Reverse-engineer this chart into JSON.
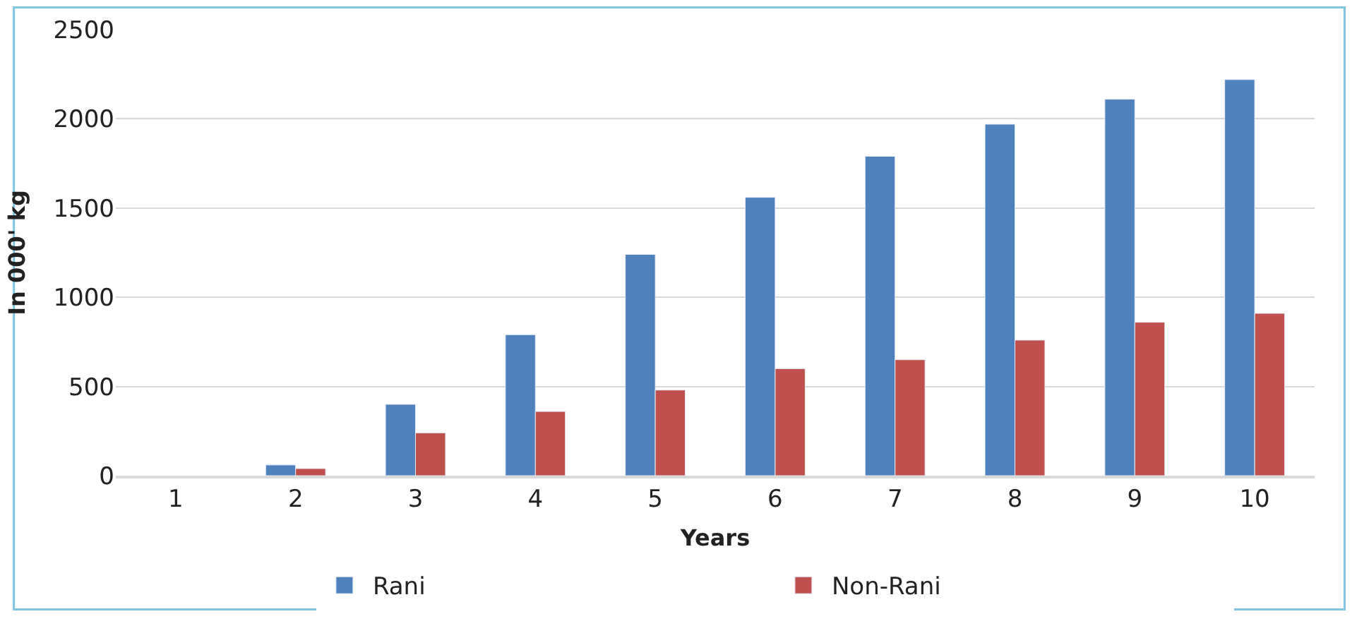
{
  "chart_data": {
    "type": "bar",
    "xlabel": "Years",
    "ylabel": "In 000' kg",
    "categories": [
      "1",
      "2",
      "3",
      "4",
      "5",
      "6",
      "7",
      "8",
      "9",
      "10"
    ],
    "series": [
      {
        "name": "Rani",
        "color": "#4f81bd",
        "values": [
          null,
          60,
          400,
          790,
          1240,
          1560,
          1790,
          1970,
          2110,
          2220
        ]
      },
      {
        "name": "Non-Rani",
        "color": "#c0504d",
        "values": [
          null,
          40,
          240,
          360,
          480,
          600,
          650,
          760,
          860,
          910
        ]
      }
    ],
    "ylim": [
      0,
      2500
    ],
    "yticks": [
      0,
      500,
      1000,
      1500,
      2000,
      2500
    ],
    "grid": "y",
    "legend": "bottom"
  }
}
